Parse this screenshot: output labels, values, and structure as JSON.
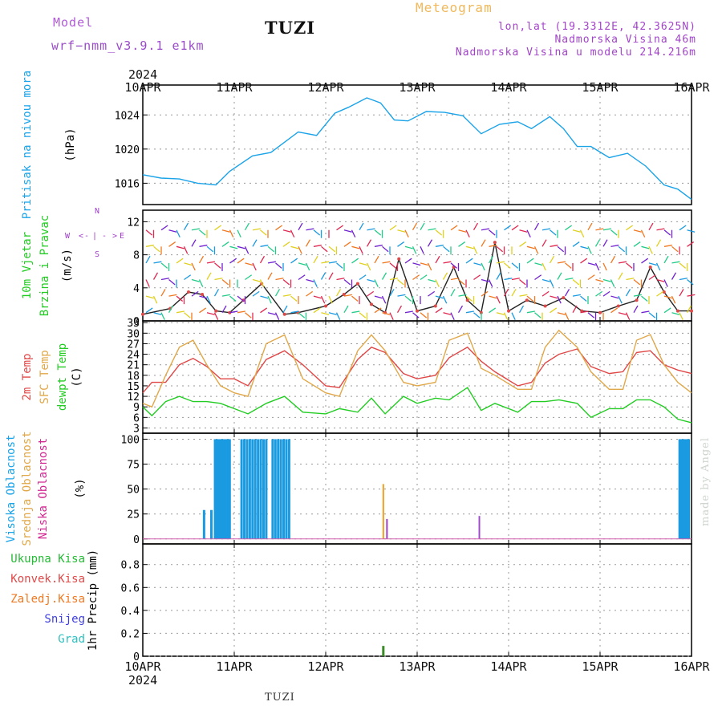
{
  "header": {
    "model_label": "Model",
    "model_version": "wrf−nmm_v3.9.1 e1km",
    "station": "TUZI",
    "meteogram_title": "Meteogram",
    "lonlat": "lon,lat (19.3312E, 42.3625N)",
    "elevation": "Nadmorska Visina 46m",
    "model_elevation": "Nadmorska Visina u modelu 214.216m"
  },
  "footer": {
    "station": "TUZI",
    "credit": "made by Angel"
  },
  "colors": {
    "pressure": "#1aa3e8",
    "temp2m": "#e04848",
    "sfc_temp": "#e0a84a",
    "dewpoint": "#22cc22",
    "high_cloud": "#1a9ae0",
    "mid_cloud": "#f0a020",
    "low_cloud": "#a04ad0",
    "precip": "#3a8a2a"
  },
  "chart_data": [
    {
      "type": "line",
      "panel": "pressure",
      "ylabel": [
        "Pritisak na nivou mora",
        "(hPa)"
      ],
      "ylabel_colors": [
        "#1aa3e8",
        "#000000"
      ],
      "ylim": [
        1013.5,
        1027.5
      ],
      "yticks": [
        1016,
        1020,
        1024
      ],
      "x_date_top": [
        "2024",
        "10APR",
        "11APR",
        "12APR",
        "13APR",
        "14APR",
        "15APR",
        "16APR"
      ],
      "x": [
        0,
        0.2,
        0.4,
        0.6,
        0.8,
        0.95,
        1.2,
        1.4,
        1.7,
        1.9,
        2.1,
        2.25,
        2.45,
        2.6,
        2.75,
        2.9,
        3.1,
        3.3,
        3.5,
        3.7,
        3.9,
        4.1,
        4.25,
        4.45,
        4.6,
        4.75,
        4.9,
        5.1,
        5.3,
        5.5,
        5.7,
        5.85,
        6.0
      ],
      "series": [
        {
          "values": [
            1017,
            1016.6,
            1016.5,
            1016,
            1015.8,
            1017.4,
            1019.2,
            1019.6,
            1022,
            1021.6,
            1024.2,
            1024.9,
            1026,
            1025.4,
            1023.4,
            1023.3,
            1024.4,
            1024.3,
            1023.9,
            1021.8,
            1022.9,
            1023.2,
            1022.4,
            1023.8,
            1022.4,
            1020.3,
            1020.3,
            1019,
            1019.5,
            1018,
            1015.8,
            1015.3,
            1014.1
          ]
        }
      ]
    },
    {
      "type": "line",
      "panel": "wind",
      "ylabel": [
        "10m Vjetar",
        "Brzina i Pravac",
        "(m/s)"
      ],
      "ylabel_colors": [
        "#22cc22",
        "#22cc22",
        "#000000"
      ],
      "compass": [
        "N",
        "W",
        "<",
        "-",
        "|",
        "-",
        ">",
        "E",
        "S"
      ],
      "ylim": [
        0,
        13.4
      ],
      "yticks": [
        0,
        4,
        8,
        12
      ],
      "x": [
        0,
        0.3,
        0.5,
        0.65,
        0.8,
        0.95,
        1.1,
        1.3,
        1.55,
        1.7,
        2.0,
        2.2,
        2.35,
        2.5,
        2.65,
        2.8,
        3.0,
        3.2,
        3.4,
        3.55,
        3.7,
        3.85,
        4.0,
        4.2,
        4.4,
        4.6,
        4.8,
        5.0,
        5.2,
        5.4,
        5.55,
        5.7,
        5.85,
        6.0
      ],
      "series": [
        {
          "values": [
            0.8,
            1.5,
            3.5,
            3.2,
            1.2,
            1,
            2.5,
            4.5,
            0.8,
            1.0,
            1.8,
            3.2,
            4.5,
            2,
            1.0,
            7.5,
            1.2,
            1.8,
            6.5,
            2.5,
            1.0,
            9.5,
            1.2,
            2.5,
            1.8,
            2.8,
            1.2,
            1.0,
            1.8,
            2.5,
            6.5,
            3.5,
            1.2,
            1.2
          ]
        }
      ]
    },
    {
      "type": "line",
      "panel": "temperature",
      "ylabel": [
        "2m Temp",
        "SFC Temp",
        "dewpt Temp",
        "(C)"
      ],
      "ylabel_colors": [
        "#e04848",
        "#e0a84a",
        "#22cc22",
        "#000000"
      ],
      "ylim": [
        1.5,
        33.5
      ],
      "yticks": [
        3,
        6,
        9,
        12,
        15,
        18,
        21,
        24,
        27,
        30,
        33
      ],
      "x": [
        0,
        0.1,
        0.25,
        0.4,
        0.55,
        0.7,
        0.85,
        1.0,
        1.15,
        1.35,
        1.55,
        1.75,
        2.0,
        2.15,
        2.35,
        2.5,
        2.65,
        2.85,
        3.0,
        3.2,
        3.35,
        3.55,
        3.7,
        3.85,
        4.1,
        4.25,
        4.4,
        4.55,
        4.75,
        4.9,
        5.1,
        5.25,
        5.4,
        5.55,
        5.7,
        5.85,
        6.0
      ],
      "series": [
        {
          "values": [
            13,
            16,
            16,
            21,
            22.8,
            20.5,
            17,
            17,
            15,
            22.5,
            25,
            21,
            15,
            14.5,
            22.5,
            26,
            24.5,
            18.5,
            17,
            18,
            23,
            26,
            22,
            19,
            15,
            16,
            21.5,
            24,
            25.5,
            20.5,
            18.5,
            19,
            24.5,
            25,
            21,
            19.5,
            18.5
          ]
        },
        {
          "values": [
            10,
            9,
            18,
            26,
            28,
            21,
            15,
            13,
            12,
            27,
            29.5,
            17,
            13,
            12,
            25,
            29.5,
            25,
            16,
            15,
            16,
            28,
            30,
            20,
            18,
            14,
            14,
            26,
            30.8,
            26,
            19,
            14,
            14,
            28,
            29.6,
            21,
            16,
            13
          ]
        },
        {
          "values": [
            9,
            6.5,
            10.5,
            12,
            10.5,
            10.5,
            10,
            8.5,
            7,
            10,
            12,
            7.5,
            7,
            8.5,
            7.5,
            11.5,
            7,
            12,
            10,
            11.5,
            11,
            14.5,
            8,
            10,
            7.5,
            10.5,
            10.5,
            11,
            10,
            6,
            8.5,
            8.5,
            11,
            11,
            9,
            5.5,
            4.5
          ]
        }
      ]
    },
    {
      "type": "bar",
      "panel": "cloud",
      "ylabel": [
        "Visoka Oblacnost",
        "Srednja Oblacnost",
        "Niska Oblacnost",
        "(%)"
      ],
      "ylabel_colors": [
        "#1aa3e8",
        "#e0a84a",
        "#d02890",
        "#000000"
      ],
      "ylim": [
        -5,
        106
      ],
      "yticks": [
        0,
        25,
        50,
        75,
        100
      ],
      "series": [
        {
          "x": [
            0.67,
            0.75,
            0.79,
            0.81,
            0.83,
            0.85,
            0.87,
            0.89,
            0.91,
            0.93,
            0.95,
            1.08,
            1.11,
            1.14,
            1.17,
            1.2,
            1.23,
            1.26,
            1.29,
            1.32,
            1.35,
            1.42,
            1.45,
            1.48,
            1.51,
            1.54,
            1.57,
            1.6,
            5.87,
            5.89,
            5.91,
            5.93,
            5.95,
            5.97
          ],
          "values": [
            29,
            29,
            100,
            100,
            100,
            100,
            100,
            100,
            100,
            100,
            100,
            100,
            100,
            100,
            100,
            100,
            100,
            100,
            100,
            100,
            100,
            100,
            100,
            100,
            100,
            100,
            100,
            100,
            100,
            100,
            100,
            100,
            100,
            100
          ]
        },
        {
          "x": [
            2.63,
            2.67
          ],
          "values": [
            55,
            20
          ]
        },
        {
          "x": [
            2.67,
            3.68
          ],
          "values": [
            20,
            23
          ]
        }
      ]
    },
    {
      "type": "bar",
      "panel": "precip",
      "ylabel": [
        "1hr Precip (mm)"
      ],
      "ylabel_colors": [
        "#000000"
      ],
      "legend": [
        {
          "label": "Ukupna Kisa",
          "color": "#22bb33"
        },
        {
          "label": "Konvek.Kisa",
          "color": "#e04848"
        },
        {
          "label": "Zaledj.Kisa",
          "color": "#f07820"
        },
        {
          "label": "Snijeg",
          "color": "#4040e0"
        },
        {
          "label": "Grad",
          "color": "#30c0c0"
        }
      ],
      "ylim": [
        0,
        0.98
      ],
      "yticks": [
        0,
        0.2,
        0.4,
        0.6,
        0.8
      ],
      "x_date_bottom": [
        "10APR",
        "11APR",
        "12APR",
        "13APR",
        "14APR",
        "15APR",
        "16APR",
        "2024"
      ],
      "x": [
        2.63
      ],
      "values": [
        0.09
      ]
    }
  ]
}
